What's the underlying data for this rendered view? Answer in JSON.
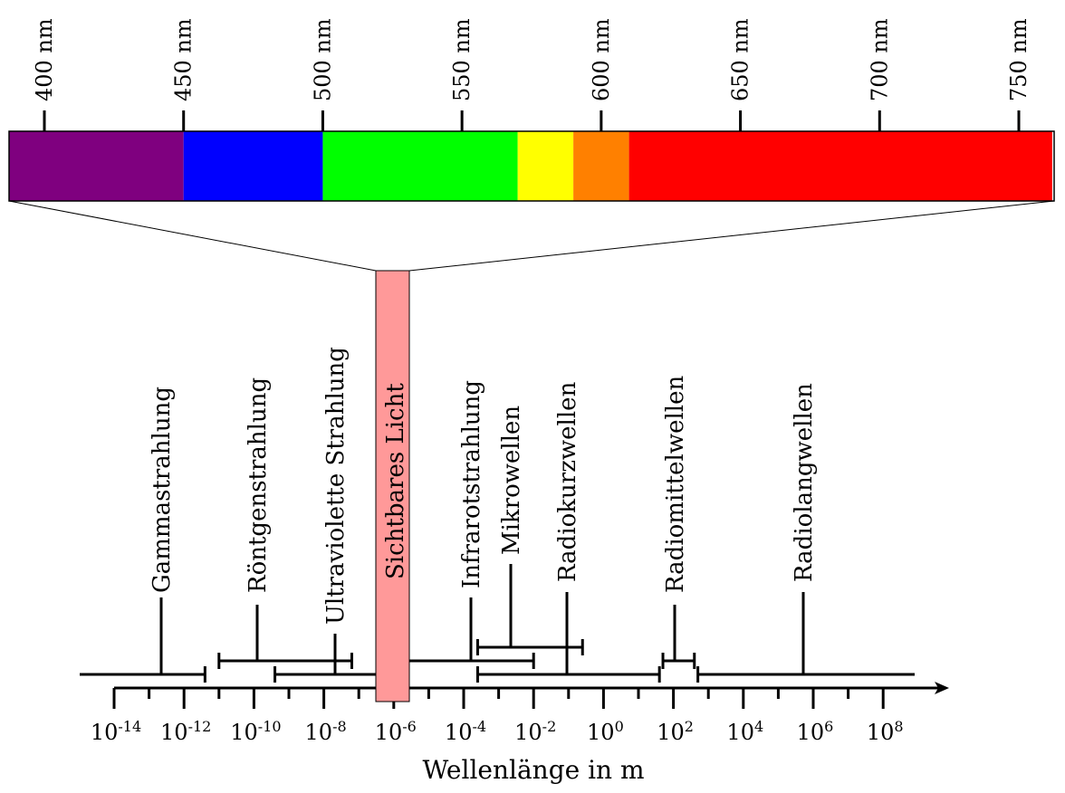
{
  "nm_scale": {
    "ticks": [
      "400 nm",
      "450 nm",
      "500 nm",
      "550 nm",
      "600 nm",
      "650 nm",
      "700 nm",
      "750 nm"
    ],
    "bands": [
      {
        "name": "violet",
        "color": "#7f007f",
        "from_nm": 387,
        "to_nm": 450
      },
      {
        "name": "blue",
        "color": "#0000ff",
        "from_nm": 450,
        "to_nm": 500
      },
      {
        "name": "green",
        "color": "#00ff00",
        "from_nm": 500,
        "to_nm": 570
      },
      {
        "name": "yellow",
        "color": "#ffff00",
        "from_nm": 570,
        "to_nm": 590
      },
      {
        "name": "orange",
        "color": "#ff8000",
        "from_nm": 590,
        "to_nm": 610
      },
      {
        "name": "red",
        "color": "#ff0000",
        "from_nm": 610,
        "to_nm": 762
      }
    ]
  },
  "visible_light": {
    "label": "Sichtbares Licht",
    "color": "#ff9999"
  },
  "log_axis": {
    "title": "Wellenlänge in m",
    "ticks": [
      {
        "base": "10",
        "exp": "-14"
      },
      {
        "base": "10",
        "exp": "-12"
      },
      {
        "base": "10",
        "exp": "-10"
      },
      {
        "base": "10",
        "exp": "-8"
      },
      {
        "base": "10",
        "exp": "-6"
      },
      {
        "base": "10",
        "exp": "-4"
      },
      {
        "base": "10",
        "exp": "-2"
      },
      {
        "base": "10",
        "exp": "0"
      },
      {
        "base": "10",
        "exp": "2"
      },
      {
        "base": "10",
        "exp": "4"
      },
      {
        "base": "10",
        "exp": "6"
      },
      {
        "base": "10",
        "exp": "8"
      }
    ]
  },
  "radiation_types": [
    {
      "label": "Gammastrahlung",
      "from_exp": null,
      "to_exp": -11.4
    },
    {
      "label": "Röntgenstrahlung",
      "from_exp": -11.0,
      "to_exp": -7.2
    },
    {
      "label": "Ultraviolette Strahlung",
      "from_exp": -9.4,
      "to_exp": -6.4
    },
    {
      "label": "Infrarotstrahlung",
      "from_exp": -5.9,
      "to_exp": -2.0
    },
    {
      "label": "Mikrowellen",
      "from_exp": -3.6,
      "to_exp": -0.6
    },
    {
      "label": "Radiokurzwellen",
      "from_exp": -3.6,
      "to_exp": 1.6
    },
    {
      "label": "Radiomittelwellen",
      "from_exp": 1.7,
      "to_exp": 2.6
    },
    {
      "label": "Radiolangwellen",
      "from_exp": 2.7,
      "to_exp": null
    }
  ]
}
